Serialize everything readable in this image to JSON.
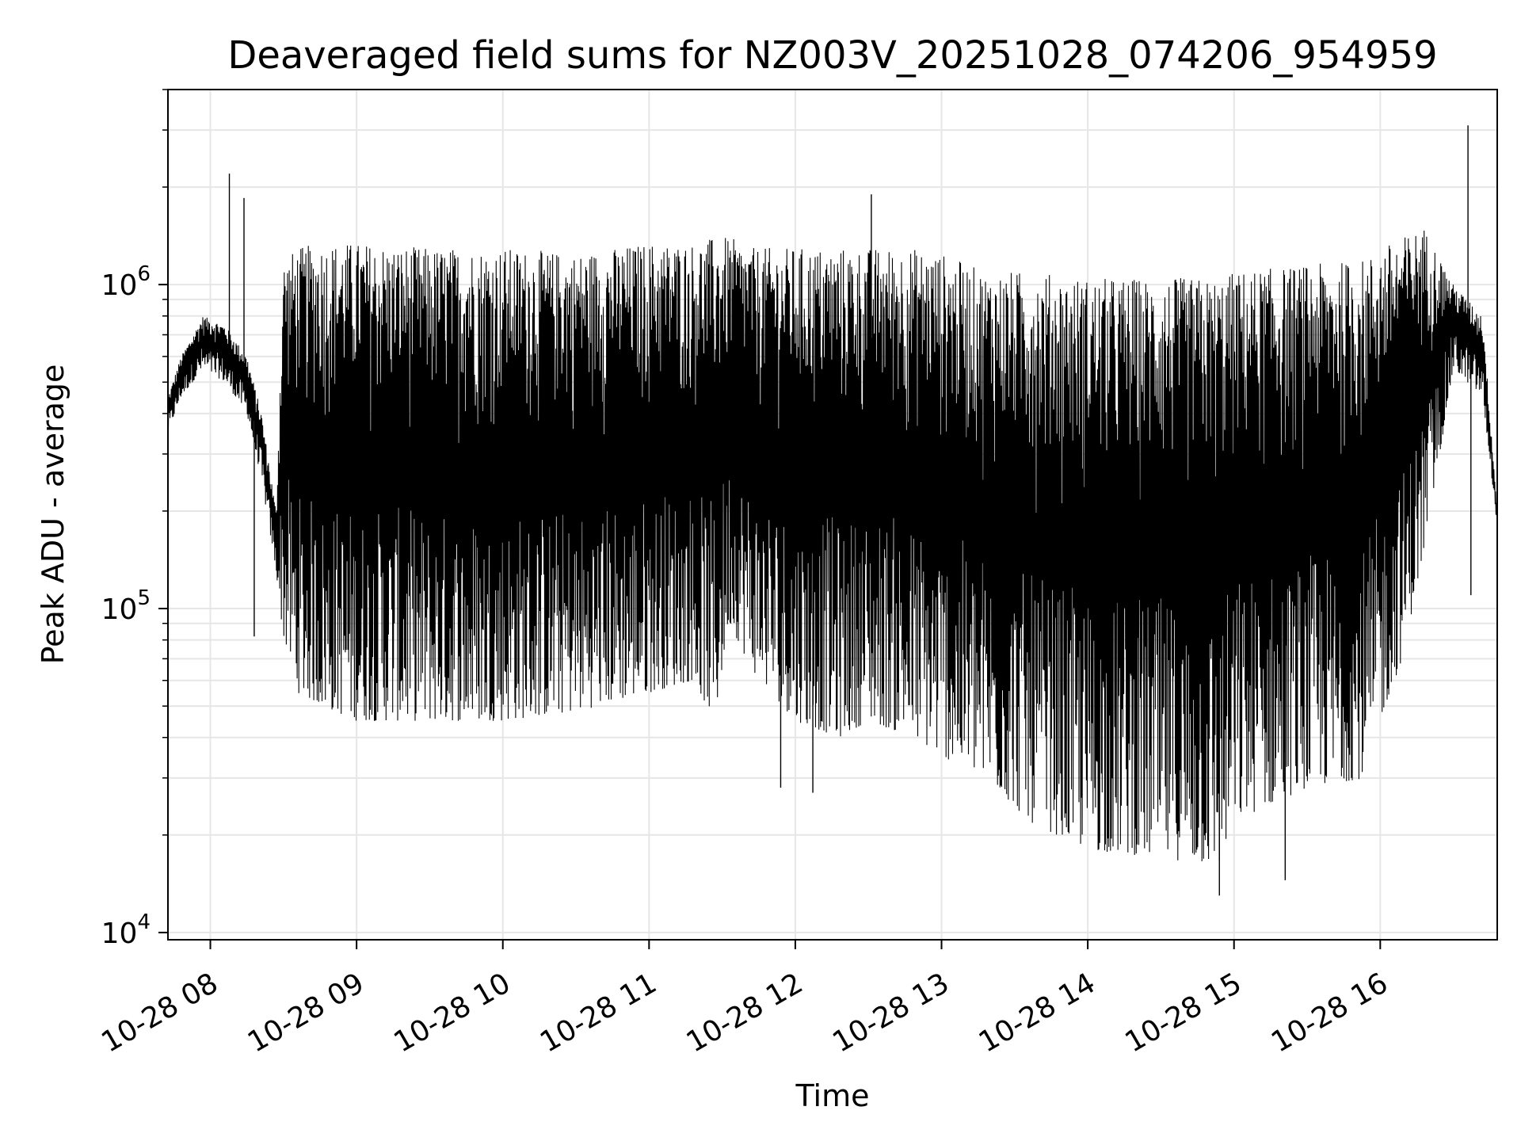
{
  "chart_data": {
    "type": "line",
    "title": "Deaveraged field sums for NZ003V_20251028_074206_954959",
    "xlabel": "Time",
    "ylabel": "Peak ADU - average",
    "yscale": "log",
    "ylim": [
      9500,
      4000000
    ],
    "xlim_hours": [
      7.71,
      16.8
    ],
    "grid": true,
    "line_color": "#000000",
    "x_ticks": [
      {
        "hour": 8,
        "label": "10-28 08"
      },
      {
        "hour": 9,
        "label": "10-28 09"
      },
      {
        "hour": 10,
        "label": "10-28 10"
      },
      {
        "hour": 11,
        "label": "10-28 11"
      },
      {
        "hour": 12,
        "label": "10-28 12"
      },
      {
        "hour": 13,
        "label": "10-28 13"
      },
      {
        "hour": 14,
        "label": "10-28 14"
      },
      {
        "hour": 15,
        "label": "10-28 15"
      },
      {
        "hour": 16,
        "label": "10-28 16"
      }
    ],
    "y_ticks": [
      {
        "value": 10000,
        "base": "10",
        "exp": "4"
      },
      {
        "value": 100000,
        "base": "10",
        "exp": "5"
      },
      {
        "value": 1000000,
        "base": "10",
        "exp": "6"
      }
    ],
    "envelope": {
      "hours": [
        7.71,
        7.8,
        7.95,
        8.1,
        8.25,
        8.35,
        8.45,
        8.5,
        8.6,
        8.75,
        9.0,
        9.5,
        10.0,
        10.5,
        11.0,
        11.3,
        11.45,
        11.55,
        11.7,
        12.0,
        12.3,
        12.5,
        12.8,
        13.0,
        13.3,
        13.6,
        14.0,
        14.5,
        14.9,
        15.0,
        15.5,
        15.9,
        16.0,
        16.15,
        16.3,
        16.5,
        16.7,
        16.8
      ],
      "upper": [
        450000,
        600000,
        800000,
        750000,
        600000,
        400000,
        200000,
        1200000,
        1300000,
        1350000,
        1350000,
        1300000,
        1300000,
        1250000,
        1350000,
        1350000,
        1400000,
        1400000,
        1300000,
        1300000,
        1300000,
        1300000,
        1300000,
        1250000,
        1100000,
        1100000,
        1050000,
        1050000,
        1050000,
        1100000,
        1150000,
        1200000,
        1300000,
        1400000,
        1500000,
        1000000,
        800000,
        200000
      ],
      "lower": [
        350000,
        450000,
        550000,
        500000,
        400000,
        250000,
        130000,
        80000,
        55000,
        50000,
        45000,
        45000,
        45000,
        48000,
        55000,
        60000,
        45000,
        90000,
        65000,
        45000,
        40000,
        45000,
        40000,
        35000,
        30000,
        22000,
        18000,
        17000,
        16000,
        22000,
        28000,
        30000,
        45000,
        70000,
        150000,
        550000,
        450000,
        180000
      ]
    },
    "spikes": [
      {
        "hour": 8.13,
        "value": 2200000
      },
      {
        "hour": 8.23,
        "value": 1850000
      },
      {
        "hour": 8.3,
        "value": 82000
      },
      {
        "hour": 11.9,
        "value": 28000
      },
      {
        "hour": 12.12,
        "value": 27000
      },
      {
        "hour": 12.52,
        "value": 1900000
      },
      {
        "hour": 14.9,
        "value": 13000
      },
      {
        "hour": 15.35,
        "value": 14500
      },
      {
        "hour": 16.6,
        "value": 3100000
      },
      {
        "hour": 16.62,
        "value": 110000
      }
    ]
  }
}
